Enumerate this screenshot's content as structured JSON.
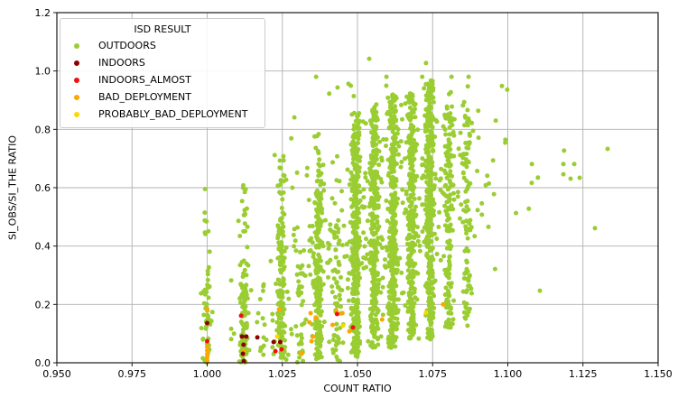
{
  "figure": {
    "background": "#ffffff"
  },
  "chart_data": {
    "type": "scatter",
    "title": "",
    "xlabel": "COUNT RATIO",
    "ylabel": "SI_OBS/SI_THE RATIO",
    "xlim": [
      0.95,
      1.15
    ],
    "ylim": [
      0.0,
      1.2
    ],
    "xtick_values": [
      0.95,
      0.975,
      1.0,
      1.025,
      1.05,
      1.075,
      1.1,
      1.125,
      1.15
    ],
    "xtick_labels": [
      "0.950",
      "0.975",
      "1.000",
      "1.025",
      "1.050",
      "1.075",
      "1.100",
      "1.125",
      "1.150"
    ],
    "ytick_values": [
      0.0,
      0.2,
      0.4,
      0.6,
      0.8,
      1.0,
      1.2
    ],
    "ytick_labels": [
      "0.0",
      "0.2",
      "0.4",
      "0.6",
      "0.8",
      "1.0",
      "1.2"
    ],
    "grid": true,
    "grid_color": "#b0b0b0",
    "spine_color": "#1a1a1a",
    "marker_diameter_px": 5,
    "legend": {
      "title": "ISD RESULT",
      "position": "upper left",
      "entries": [
        {
          "label": "OUTDOORS",
          "color": "#9ACD32"
        },
        {
          "label": "INDOORS",
          "color": "#8B0000"
        },
        {
          "label": "INDOORS_ALMOST",
          "color": "#F01010"
        },
        {
          "label": "BAD_DEPLOYMENT",
          "color": "#FFA500"
        },
        {
          "label": "PROBABLY_BAD_DEPLOYMENT",
          "color": "#FFD700"
        }
      ]
    },
    "series": [
      {
        "name": "OUTDOORS",
        "color": "#9ACD32",
        "seed": 20240817,
        "x_jitter_sd": 0.0007,
        "bands": [
          {
            "x": 1.0,
            "n": 55,
            "y_min": 0.0,
            "y_max": 0.27,
            "bias": 1.1
          },
          {
            "x": 1.0,
            "n": 12,
            "y_min": 0.27,
            "y_max": 0.68,
            "bias": 1.0
          },
          {
            "x": 1.0123,
            "n": 95,
            "y_min": 0.0,
            "y_max": 0.36,
            "bias": 1.15
          },
          {
            "x": 1.0123,
            "n": 18,
            "y_min": 0.36,
            "y_max": 0.62,
            "bias": 1.0
          },
          {
            "x": 1.0185,
            "n": 12,
            "y_min": 0.02,
            "y_max": 0.3,
            "bias": 1.0
          },
          {
            "x": 1.0247,
            "n": 135,
            "y_min": 0.01,
            "y_max": 0.5,
            "bias": 1.15
          },
          {
            "x": 1.0247,
            "n": 20,
            "y_min": 0.5,
            "y_max": 0.72,
            "bias": 1.0
          },
          {
            "x": 1.0309,
            "n": 25,
            "y_min": 0.0,
            "y_max": 0.35,
            "bias": 1.1
          },
          {
            "x": 1.037,
            "n": 175,
            "y_min": 0.01,
            "y_max": 0.58,
            "bias": 1.1
          },
          {
            "x": 1.037,
            "n": 22,
            "y_min": 0.58,
            "y_max": 0.79,
            "bias": 1.0
          },
          {
            "x": 1.0432,
            "n": 45,
            "y_min": 0.0,
            "y_max": 0.45,
            "bias": 1.1
          },
          {
            "x": 1.0494,
            "n": 300,
            "y_min": 0.02,
            "y_max": 0.72,
            "bias": 1.1
          },
          {
            "x": 1.0494,
            "n": 45,
            "y_min": 0.72,
            "y_max": 0.86,
            "bias": 1.0
          },
          {
            "x": 1.0556,
            "n": 235,
            "y_min": 0.05,
            "y_max": 0.8,
            "bias": 1.05
          },
          {
            "x": 1.0556,
            "n": 25,
            "y_min": 0.8,
            "y_max": 0.88,
            "bias": 1.0
          },
          {
            "x": 1.0617,
            "n": 300,
            "y_min": 0.05,
            "y_max": 0.85,
            "bias": 1.05
          },
          {
            "x": 1.0617,
            "n": 25,
            "y_min": 0.85,
            "y_max": 0.92,
            "bias": 1.0
          },
          {
            "x": 1.0679,
            "n": 260,
            "y_min": 0.08,
            "y_max": 0.88,
            "bias": 1.0
          },
          {
            "x": 1.0679,
            "n": 18,
            "y_min": 0.88,
            "y_max": 0.93,
            "bias": 1.0
          },
          {
            "x": 1.0741,
            "n": 320,
            "y_min": 0.08,
            "y_max": 0.92,
            "bias": 1.0
          },
          {
            "x": 1.0741,
            "n": 20,
            "y_min": 0.92,
            "y_max": 0.97,
            "bias": 1.0
          },
          {
            "x": 1.0803,
            "n": 150,
            "y_min": 0.12,
            "y_max": 0.88,
            "bias": 1.0
          },
          {
            "x": 1.0865,
            "n": 80,
            "y_min": 0.15,
            "y_max": 0.87,
            "bias": 1.0
          }
        ],
        "diffuse": {
          "n": 430,
          "x_mean": 1.058,
          "x_sd": 0.02,
          "x_min": 1.008,
          "x_max": 1.118,
          "y_base": 0.15,
          "y_slope": 6.0,
          "y_mean_min": 0.12,
          "y_mean_max": 0.66,
          "y_sd": 0.19,
          "y_min": 0.02,
          "y_max": 0.98
        },
        "extra_points": [
          [
            1.0539,
            1.042
          ],
          [
            1.047,
            0.956
          ],
          [
            1.0728,
            1.027
          ],
          [
            1.029,
            0.841
          ],
          [
            1.1187,
            0.727
          ],
          [
            1.1185,
            0.681
          ],
          [
            1.1221,
            0.681
          ],
          [
            1.1185,
            0.646
          ],
          [
            1.1209,
            0.631
          ],
          [
            1.1239,
            0.634
          ],
          [
            1.1332,
            0.733
          ],
          [
            1.129,
            0.461
          ],
          [
            1.1107,
            0.247
          ],
          [
            1.0852,
            0.244
          ],
          [
            1.088,
            0.238
          ],
          [
            1.082,
            0.213
          ],
          [
            1.0857,
            0.155
          ],
          [
            1.0866,
            0.127
          ],
          [
            1.081,
            0.121
          ]
        ]
      },
      {
        "name": "INDOORS",
        "color": "#8B0000",
        "points": [
          [
            1.0,
            0.136
          ],
          [
            1.0116,
            0.09
          ],
          [
            1.013,
            0.09
          ],
          [
            1.0121,
            0.062
          ],
          [
            1.0119,
            0.031
          ],
          [
            1.0122,
            0.006
          ],
          [
            1.0167,
            0.087
          ],
          [
            1.0221,
            0.071
          ],
          [
            1.0243,
            0.071
          ]
        ]
      },
      {
        "name": "INDOORS_ALMOST",
        "color": "#F01010",
        "points": [
          [
            1.0,
            0.074
          ],
          [
            1.0113,
            0.161
          ],
          [
            1.0227,
            0.04
          ],
          [
            1.0247,
            0.046
          ],
          [
            1.0432,
            0.167
          ],
          [
            1.0485,
            0.121
          ]
        ]
      },
      {
        "name": "BAD_DEPLOYMENT",
        "color": "#FFA500",
        "points": [
          [
            1.0,
            0.183
          ],
          [
            1.0,
            0.055
          ],
          [
            1.0,
            0.043
          ],
          [
            1.0,
            0.03
          ],
          [
            1.0,
            0.018
          ],
          [
            1.0,
            0.006
          ],
          [
            1.0122,
            0.04
          ],
          [
            1.0239,
            0.183
          ],
          [
            1.0314,
            0.031
          ],
          [
            1.0344,
            0.17
          ],
          [
            1.0362,
            0.155
          ],
          [
            1.034,
            0.139
          ],
          [
            1.0353,
            0.09
          ],
          [
            1.0347,
            0.074
          ],
          [
            1.0417,
            0.13
          ],
          [
            1.043,
            0.177
          ],
          [
            1.045,
            0.17
          ],
          [
            1.0473,
            0.108
          ],
          [
            1.0582,
            0.148
          ],
          [
            1.0785,
            0.2
          ]
        ]
      },
      {
        "name": "PROBABLY_BAD_DEPLOYMENT",
        "color": "#FFD700",
        "points": [
          [
            1.0233,
            0.09
          ],
          [
            1.0452,
            0.127
          ],
          [
            1.0728,
            0.172
          ]
        ]
      }
    ]
  }
}
